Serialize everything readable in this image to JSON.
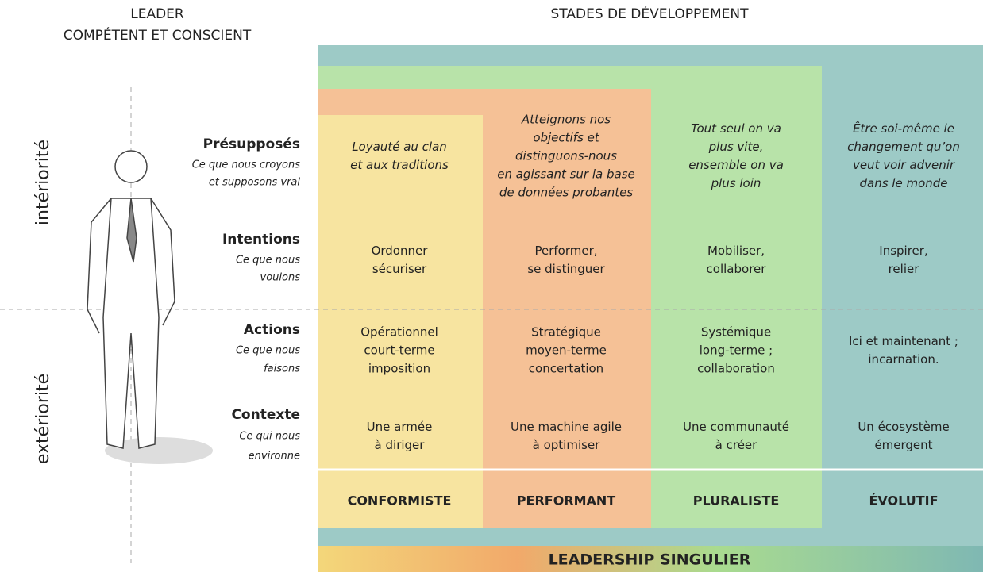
{
  "header": {
    "left_title": [
      "LEADER",
      "COMPÉTENT ET CONSCIENT"
    ],
    "right_title": "STADES DE DÉVELOPPEMENT"
  },
  "sides": [
    "intériorité",
    "extériorité"
  ],
  "rows": [
    {
      "label": "Présupposés",
      "sub": [
        "Ce que nous croyons",
        "et supposons vrai"
      ]
    },
    {
      "label": "Intentions",
      "sub": [
        "Ce que nous",
        "voulons"
      ]
    },
    {
      "label": "Actions",
      "sub": [
        "Ce que nous",
        "faisons"
      ]
    },
    {
      "label": "Contexte",
      "sub": [
        "Ce qui nous",
        "environne"
      ]
    }
  ],
  "columns": [
    {
      "name": "CONFORMISTE",
      "cells": [
        [
          "Loyauté au clan",
          "et aux traditions"
        ],
        [
          "Ordonner",
          "sécuriser"
        ],
        [
          "Opérationnel",
          "court-terme",
          "imposition"
        ],
        [
          "Une armée",
          "à diriger"
        ]
      ]
    },
    {
      "name": "PERFORMANT",
      "cells": [
        [
          "Atteignons nos",
          "objectifs et",
          "distinguons-nous",
          "en agissant sur la base",
          "de données probantes"
        ],
        [
          "Performer,",
          "se distinguer"
        ],
        [
          "Stratégique",
          "moyen-terme",
          "concertation"
        ],
        [
          "Une machine agile",
          "à optimiser"
        ]
      ]
    },
    {
      "name": "PLURALISTE",
      "cells": [
        [
          "Tout seul on va",
          "plus vite,",
          "ensemble on va",
          "plus loin"
        ],
        [
          "Mobiliser,",
          "collaborer"
        ],
        [
          "Systémique",
          "long-terme ;",
          "collaboration"
        ],
        [
          "Une communauté",
          "à créer"
        ]
      ]
    },
    {
      "name": "ÉVOLUTIF",
      "cells": [
        [
          "Être soi-même le",
          "changement qu’on",
          "veut voir advenir",
          "dans le monde"
        ],
        [
          "Inspirer,",
          "relier"
        ],
        [
          "Ici et maintenant ;",
          "incarnation."
        ],
        [
          "Un écosystème",
          "émergent"
        ]
      ]
    }
  ],
  "footer": "LEADERSHIP SINGULIER"
}
